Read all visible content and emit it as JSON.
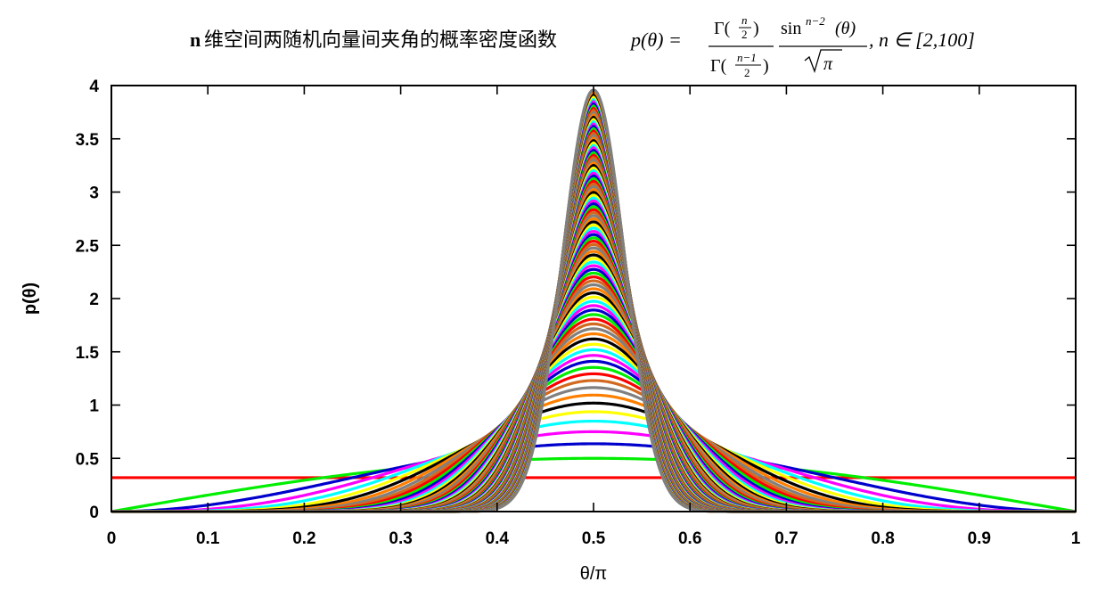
{
  "chart_data": {
    "type": "line",
    "title": {
      "prefix": "n",
      "chinese": "维空间两随机向量间夹角的概率密度函数",
      "formula_lhs": "p(θ) =",
      "gamma_num": "Γ(",
      "num_n": "n",
      "num_2": "2",
      "gamma_den": "Γ(",
      "den_n": "n−1",
      "den_2": "2",
      "close": ")",
      "sin_text": "sin",
      "sin_exp": "n−2",
      "sin_arg": "(θ)",
      "sqrt_pi": "π",
      "n_range": ", n ∈ [2,100]"
    },
    "xlabel": "θ/π",
    "ylabel": "p(θ)",
    "xlim": [
      0,
      1
    ],
    "ylim": [
      0,
      4
    ],
    "x_ticks": [
      "0",
      "0.1",
      "0.2",
      "0.3",
      "0.4",
      "0.5",
      "0.6",
      "0.7",
      "0.8",
      "0.9",
      "1"
    ],
    "y_ticks": [
      "0",
      "0.5",
      "1",
      "1.5",
      "2",
      "2.5",
      "3",
      "3.5",
      "4"
    ],
    "n_min": 2,
    "n_max": 100,
    "function": "p(θ) = Γ(n/2)/Γ((n−1)/2) · sin^(n−2)(θ)/√π",
    "palette": [
      "#ff0000",
      "#00ee00",
      "#0000cc",
      "#ff00ff",
      "#00ffff",
      "#ffff00",
      "#000000",
      "#ff7f00",
      "#808080",
      "#d2691e"
    ],
    "series_colors_note": "curve n uses palette[(n-2) mod 10]"
  }
}
